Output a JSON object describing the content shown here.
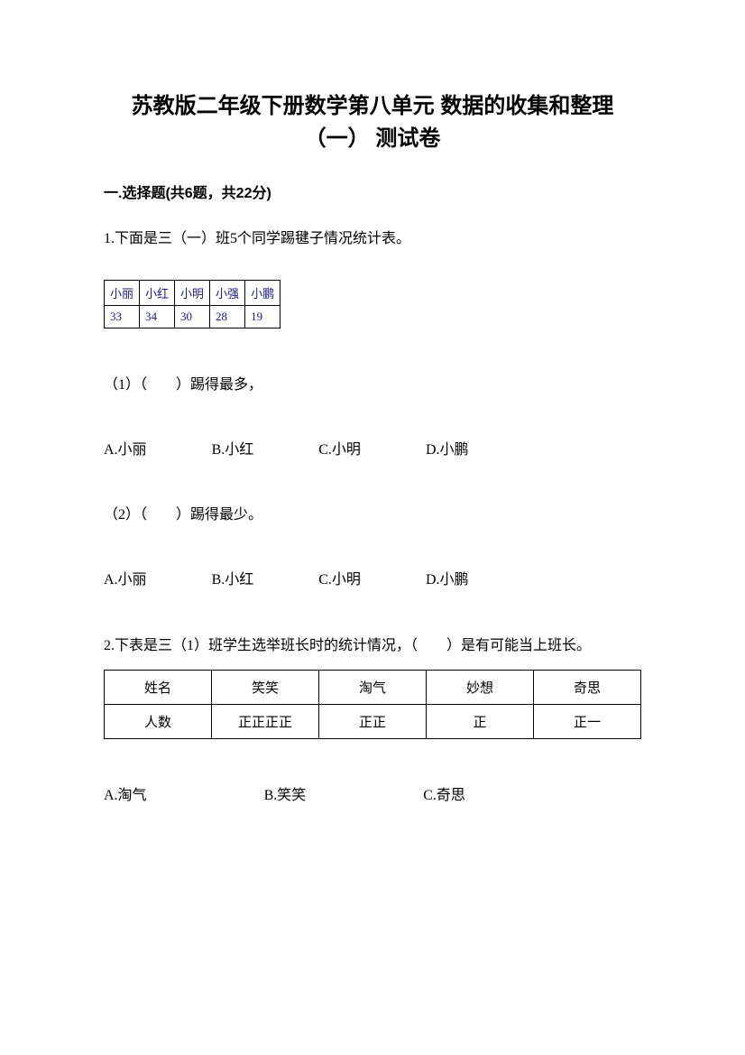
{
  "title_line1": "苏教版二年级下册数学第八单元 数据的收集和整理",
  "title_line2": "（一） 测试卷",
  "section1": {
    "header": "一.选择题(共6题，共22分)"
  },
  "q1": {
    "intro": "1.下面是三（一）班5个同学踢毽子情况统计表。",
    "table": {
      "headers": [
        "小丽",
        "小红",
        "小明",
        "小强",
        "小鹏"
      ],
      "values": [
        "33",
        "34",
        "30",
        "28",
        "19"
      ]
    },
    "sub1": "（1）（　　）踢得最多，",
    "sub2": "（2）（　　）踢得最少。",
    "options": {
      "a": "A.小丽",
      "b": "B.小红",
      "c": "C.小明",
      "d": "D.小鹏"
    }
  },
  "q2": {
    "intro": "2.下表是三（1）班学生选举班长时的统计情况，（　　）是有可能当上班长。",
    "table": {
      "row1": [
        "姓名",
        "笑笑",
        "淘气",
        "妙想",
        "奇思"
      ],
      "row2": [
        "人数",
        "正正正正",
        "正正",
        "正",
        "正一"
      ]
    },
    "options": {
      "a": "A.淘气",
      "b": "B.笑笑",
      "c": "C.奇思"
    }
  }
}
